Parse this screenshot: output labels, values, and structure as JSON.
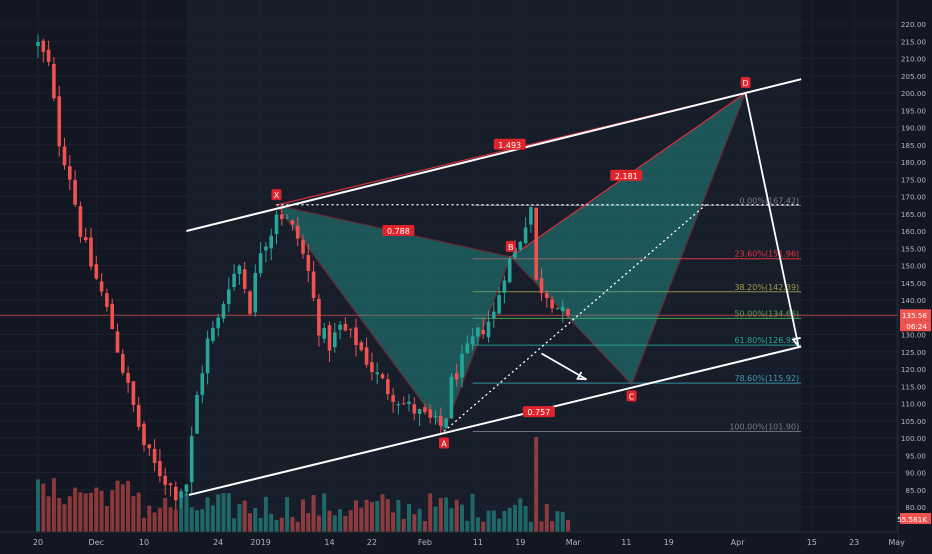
{
  "chart_data": {
    "type": "candlestick",
    "title": "",
    "xlabel": "",
    "ylabel": "",
    "ylim": [
      75,
      220
    ],
    "y_ticks": [
      80,
      85,
      90,
      95,
      100,
      105,
      110,
      115,
      120,
      125,
      130,
      135,
      140,
      145,
      150,
      155,
      160,
      165,
      170,
      175,
      180,
      185,
      190,
      195,
      200,
      205,
      210,
      215,
      220
    ],
    "x_ticks": [
      {
        "label": "20",
        "t": 0.0
      },
      {
        "label": "Dec",
        "t": 11.0
      },
      {
        "label": "10",
        "t": 20.0
      },
      {
        "label": "24",
        "t": 34.0
      },
      {
        "label": "2019",
        "t": 42.0
      },
      {
        "label": "14",
        "t": 55.0
      },
      {
        "label": "22",
        "t": 63.0
      },
      {
        "label": "Feb",
        "t": 73.0
      },
      {
        "label": "11",
        "t": 83.0
      },
      {
        "label": "19",
        "t": 91.0
      },
      {
        "label": "Mar",
        "t": 101.0
      },
      {
        "label": "11",
        "t": 111.0
      },
      {
        "label": "19",
        "t": 119.0
      },
      {
        "label": "Apr",
        "t": 132.0
      },
      {
        "label": "15",
        "t": 146.0
      },
      {
        "label": "23",
        "t": 154.0
      },
      {
        "label": "May",
        "t": 162.0
      }
    ],
    "pattern_points": [
      {
        "label": "X",
        "t": 45.0,
        "price": 167.5
      },
      {
        "label": "A",
        "t": 76.6,
        "price": 101.9
      },
      {
        "label": "B",
        "t": 89.2,
        "price": 152.5
      },
      {
        "label": "C",
        "t": 112.0,
        "price": 115.5
      },
      {
        "label": "D",
        "t": 133.5,
        "price": 200.0
      }
    ],
    "ratio_labels": [
      {
        "text": "0.788",
        "t": 68.0,
        "price": 160.0
      },
      {
        "text": "1.493",
        "t": 89.0,
        "price": 185.0
      },
      {
        "text": "2.181",
        "t": 111.0,
        "price": 176.0
      },
      {
        "text": "0.757",
        "t": 94.5,
        "price": 107.5
      }
    ],
    "fib_levels": [
      {
        "label": "0.00%(167.42)",
        "price": 167.42,
        "color": "#787b86"
      },
      {
        "label": "23.60%(151.96)",
        "price": 151.96,
        "color": "#f23645"
      },
      {
        "label": "38.20%(142.39)",
        "price": 142.39,
        "color": "#9c9c4c"
      },
      {
        "label": "50.00%(134.66)",
        "price": 134.66,
        "color": "#4caf50"
      },
      {
        "label": "61.80%(126.93)",
        "price": 126.93,
        "color": "#26a69a"
      },
      {
        "label": "78.60%(115.92)",
        "price": 115.92,
        "color": "#3a9bb0"
      },
      {
        "label": "100.00%(101.90)",
        "price": 101.9,
        "color": "#787b86"
      }
    ],
    "channel": {
      "upper": {
        "t1": 28.0,
        "p1": 160.0,
        "t2": 144.0,
        "p2": 204.0
      },
      "lower": {
        "t1": 28.5,
        "p1": 83.5,
        "t2": 144.0,
        "p2": 126.5
      }
    },
    "projection": {
      "t1": 133.5,
      "p1": 200.0,
      "t2": 143.5,
      "p2": 126.5
    },
    "pointer": {
      "t1": 95.0,
      "p1": 124.5,
      "t2": 103.5,
      "p2": 117.0
    },
    "dotted_horizontal": {
      "price": 167.6,
      "t_end": 144.0
    },
    "dotted_diagonal": {
      "t1": 76.6,
      "p1": 101.9,
      "t2": 126.0,
      "p2": 167.6
    },
    "highlight_start_t": 28.0,
    "current_price": {
      "label": "135.58",
      "value": 135.58,
      "color": "#ef5350"
    },
    "countdown": {
      "label": "06:24"
    },
    "volume_label": {
      "label": "55.581K"
    },
    "colors": {
      "background": "#131722",
      "up": "#26a69a",
      "down": "#ef5350",
      "pattern_fill": "#26a69a",
      "pattern_line": "#d1323a",
      "marker": "#e0242c",
      "axis_text": "#b2b5be",
      "channel": "#ffffff"
    }
  }
}
